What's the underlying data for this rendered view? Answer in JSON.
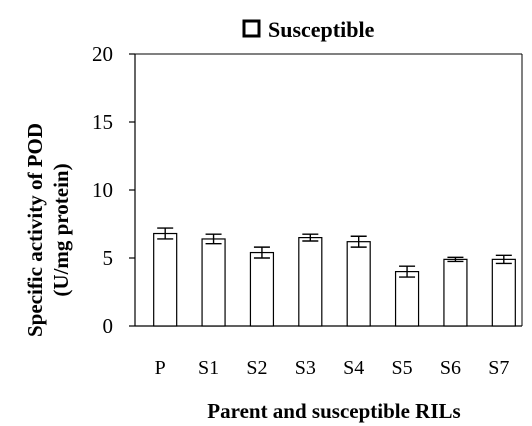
{
  "chart_data": {
    "type": "bar",
    "title": "",
    "legend": {
      "position": "top",
      "entries": [
        "Susceptible"
      ]
    },
    "xlabel": "Parent and  susceptible RILs",
    "ylabel_lines": [
      "Specific activity of POD",
      "(U/mg protein)"
    ],
    "ylim": [
      0,
      20
    ],
    "yticks": [
      0,
      5,
      10,
      15,
      20
    ],
    "grid": false,
    "categories": [
      "P",
      "S1",
      "S2",
      "S3",
      "S4",
      "S5",
      "S6",
      "S7"
    ],
    "series": [
      {
        "name": "Susceptible",
        "values": [
          6.8,
          6.4,
          5.4,
          6.5,
          6.2,
          4.0,
          4.9,
          4.9
        ],
        "errors": [
          0.4,
          0.35,
          0.4,
          0.25,
          0.4,
          0.4,
          0.15,
          0.3
        ],
        "fill": "#ffffff",
        "stroke": "#000000"
      }
    ]
  }
}
